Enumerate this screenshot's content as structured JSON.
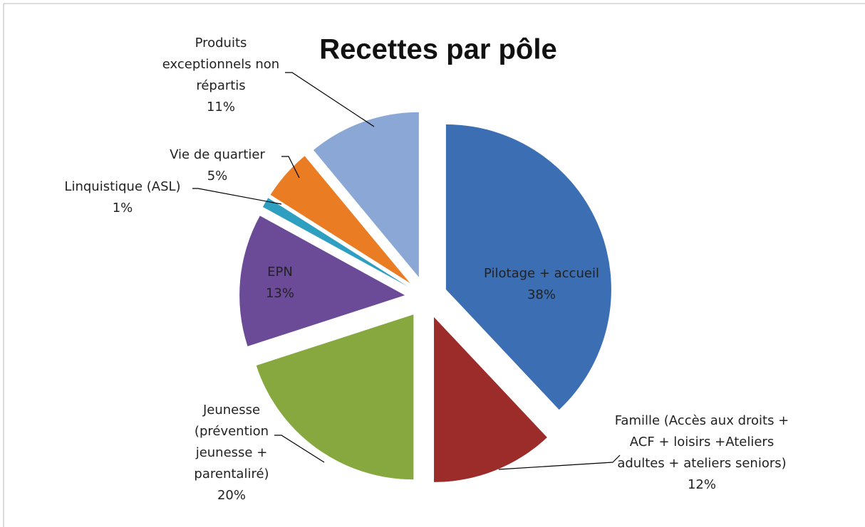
{
  "chart_data": {
    "type": "pie",
    "title": "Recettes par pôle",
    "categories": [
      "Pilotage + accueil",
      "Famille (Accès aux droits + ACF + loisirs +Ateliers adultes + ateliers seniors)",
      "Jeunesse (prévention jeunesse + parentaliré)",
      "EPN",
      "Linquistique (ASL)",
      "Vie de quartier",
      "Produits exceptionnels non répartis"
    ],
    "values": [
      38,
      12,
      20,
      13,
      1,
      5,
      11
    ],
    "value_labels": [
      "38%",
      "12%",
      "20%",
      "13%",
      "1%",
      "5%",
      "11%"
    ],
    "colors": [
      "#3c6eb4",
      "#9b2c2a",
      "#86a83f",
      "#6b4b98",
      "#2f9fc1",
      "#ea7c24",
      "#8ba7d6"
    ]
  }
}
